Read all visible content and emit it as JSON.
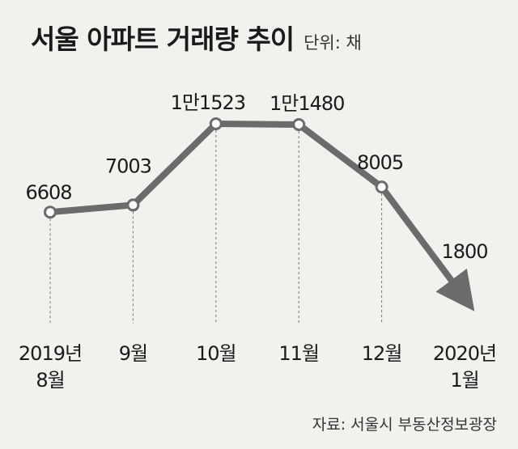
{
  "header": {
    "title": "서울 아파트 거래량 추이",
    "unit": "단위: 채"
  },
  "source": "자료: 서울시 부동산정보광장",
  "colors": {
    "line": "#6b6b6b",
    "background": "#f1f1ee",
    "text": "#1a1a1a"
  },
  "chart_data": {
    "type": "line",
    "title": "서울 아파트 거래량 추이",
    "xlabel": "",
    "ylabel": "",
    "ylim": [
      0,
      12000
    ],
    "x": [
      "2019년 8월",
      "9월",
      "10월",
      "11월",
      "12월",
      "2020년 1월"
    ],
    "tick_labels": [
      [
        "2019년",
        "8월"
      ],
      [
        "9월"
      ],
      [
        "10월"
      ],
      [
        "11월"
      ],
      [
        "12월"
      ],
      [
        "2020년",
        "1월"
      ]
    ],
    "values": [
      6608,
      7003,
      11523,
      11480,
      8005,
      1800
    ],
    "data_labels": [
      "6608",
      "7003",
      "1만1523",
      "1만1480",
      "8005",
      "1800"
    ],
    "last_point_arrow": true
  }
}
